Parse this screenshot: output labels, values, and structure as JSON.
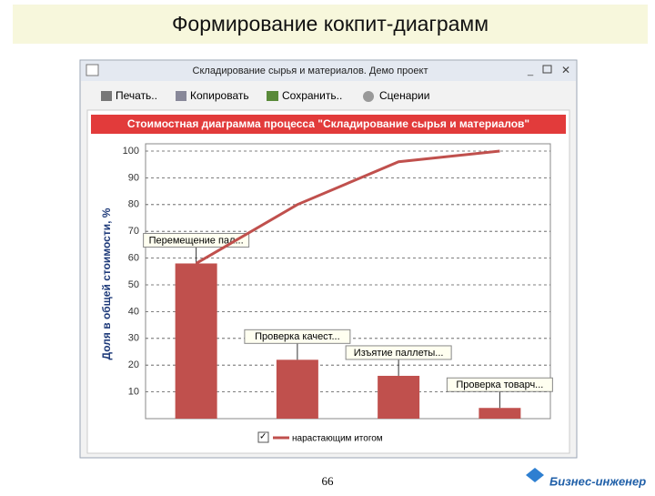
{
  "slide_title": "Формирование кокпит-диаграмм",
  "window": {
    "title": "Складирование сырья и материалов. Демо проект",
    "toolbar": [
      "Печать..",
      "Копировать",
      "Сохранить..",
      "Сценарии"
    ]
  },
  "chart_data": {
    "type": "bar",
    "title": "Стоимостная диаграмма процесса \"Складирование сырья и материалов\"",
    "y_label": "Доля в общей стоимости, %",
    "categories": [
      "Перемещение пал...",
      "Проверка качест...",
      "Изъятие паллеты...",
      "Проверка товарч..."
    ],
    "series": [
      {
        "color": "#c0504d",
        "values": [
          58,
          22,
          16,
          4
        ]
      },
      {
        "name": "нарастающим итогом",
        "type": "line",
        "color": "#c0504d",
        "values": [
          58,
          80,
          96,
          100
        ]
      }
    ],
    "ylim": [
      0,
      100
    ],
    "yticks": [
      10,
      20,
      30,
      40,
      50,
      60,
      70,
      80,
      90,
      100
    ],
    "grid": true
  },
  "footer": {
    "page": "66",
    "logo": "Бизнес-инженер"
  }
}
